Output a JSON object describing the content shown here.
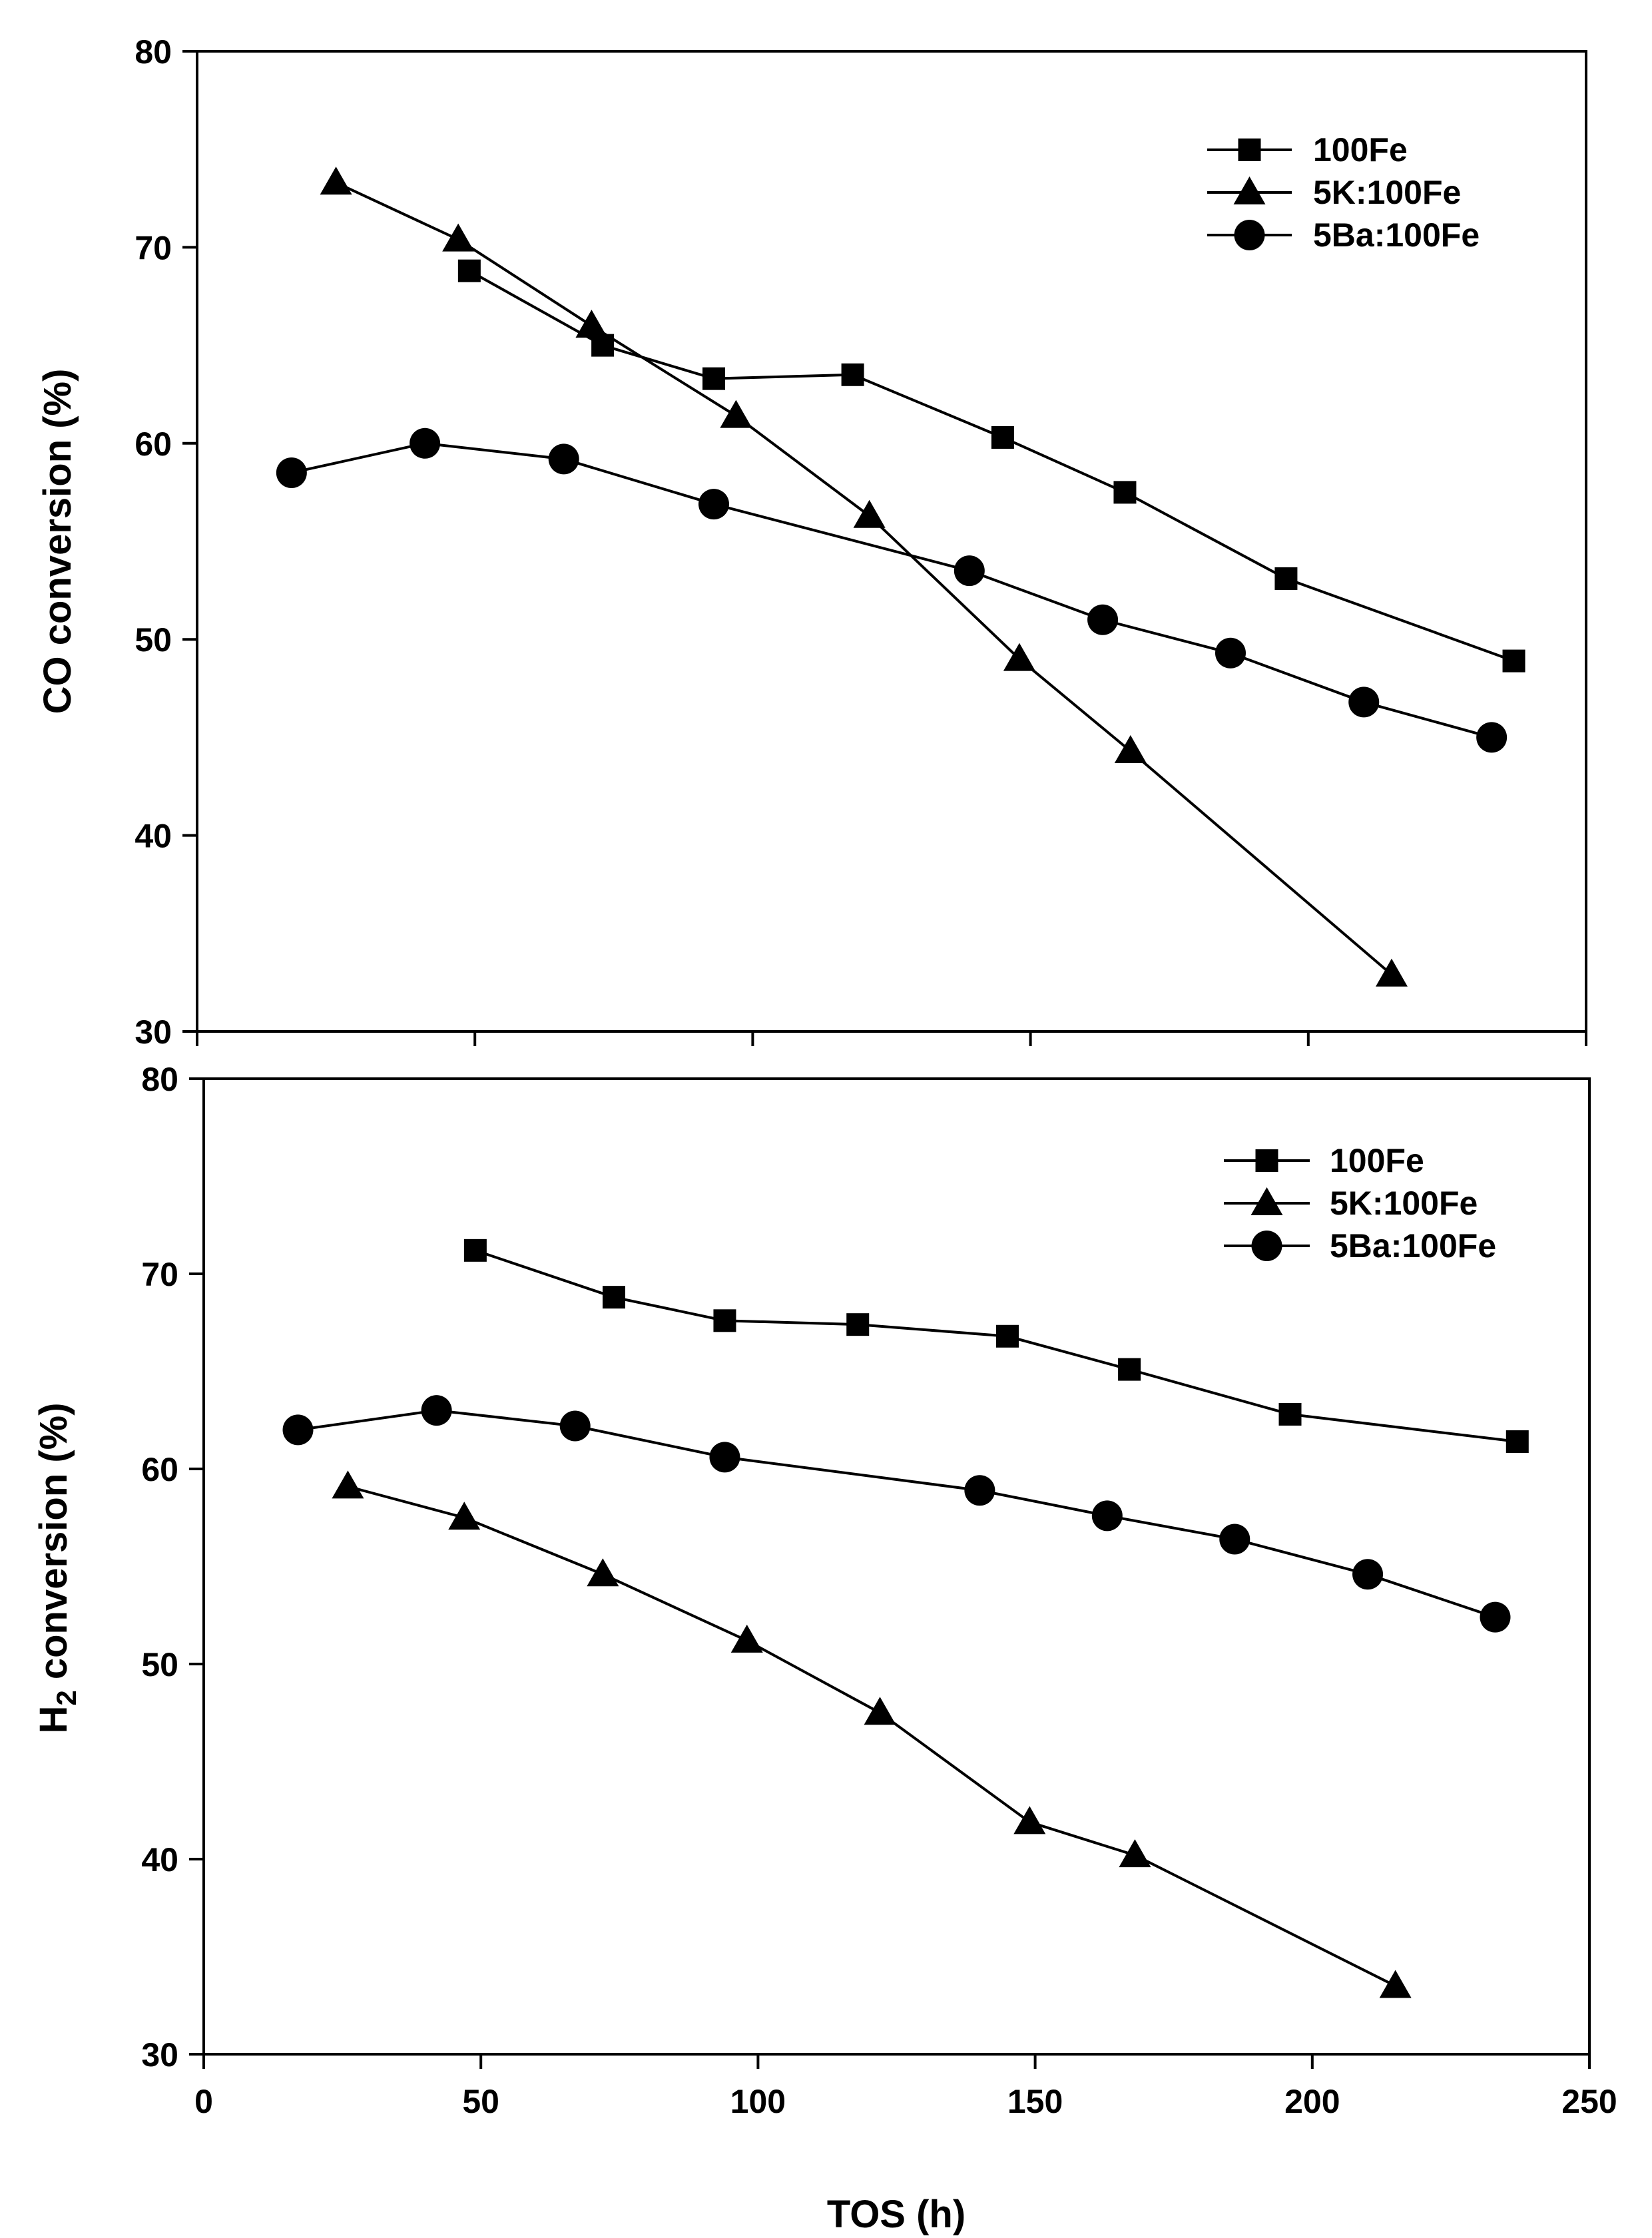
{
  "chart_data": [
    {
      "type": "line",
      "title": "",
      "xlabel": "",
      "ylabel": "CO conversion (%)",
      "xlim": [
        0,
        250
      ],
      "ylim": [
        30,
        80
      ],
      "xticks": [
        0,
        50,
        100,
        150,
        200,
        250
      ],
      "yticks": [
        30,
        40,
        50,
        60,
        70,
        80
      ],
      "show_x_tick_labels": false,
      "grid": false,
      "legend_position": "top-right",
      "series": [
        {
          "name": "100Fe",
          "marker": "square",
          "x": [
            49,
            73,
            93,
            118,
            145,
            167,
            196,
            237
          ],
          "y": [
            68.8,
            65.0,
            63.3,
            63.5,
            60.3,
            57.5,
            53.1,
            48.9
          ]
        },
        {
          "name": "5K:100Fe",
          "marker": "triangle",
          "x": [
            25,
            47,
            71,
            97,
            121,
            148,
            168,
            215
          ],
          "y": [
            73.3,
            70.4,
            66.0,
            61.4,
            56.3,
            49.0,
            44.3,
            32.9
          ]
        },
        {
          "name": "5Ba:100Fe",
          "marker": "circle",
          "x": [
            17,
            41,
            66,
            93,
            139,
            163,
            186,
            210,
            233
          ],
          "y": [
            58.5,
            60.0,
            59.2,
            56.9,
            53.5,
            51.0,
            49.3,
            46.8,
            45.0
          ]
        }
      ]
    },
    {
      "type": "line",
      "title": "",
      "xlabel": "TOS (h)",
      "ylabel": "H2 conversion (%)",
      "ylabel_main": "H",
      "ylabel_sub": "2",
      "ylabel_rest": " conversion (%)",
      "xlim": [
        0,
        250
      ],
      "ylim": [
        30,
        80
      ],
      "xticks": [
        0,
        50,
        100,
        150,
        200,
        250
      ],
      "yticks": [
        30,
        40,
        50,
        60,
        70,
        80
      ],
      "show_x_tick_labels": true,
      "grid": false,
      "legend_position": "top-right",
      "series": [
        {
          "name": "100Fe",
          "marker": "square",
          "x": [
            49,
            74,
            94,
            118,
            145,
            167,
            196,
            237
          ],
          "y": [
            71.2,
            68.8,
            67.6,
            67.4,
            66.8,
            65.1,
            62.8,
            61.4
          ]
        },
        {
          "name": "5K:100Fe",
          "marker": "triangle",
          "x": [
            26,
            47,
            72,
            98,
            122,
            149,
            168,
            215
          ],
          "y": [
            59.1,
            57.5,
            54.6,
            51.2,
            47.5,
            41.9,
            40.2,
            33.5
          ]
        },
        {
          "name": "5Ba:100Fe",
          "marker": "circle",
          "x": [
            17,
            42,
            67,
            94,
            140,
            163,
            186,
            210,
            233
          ],
          "y": [
            62.0,
            63.0,
            62.2,
            60.6,
            58.9,
            57.6,
            56.4,
            54.6,
            52.4
          ]
        }
      ]
    }
  ]
}
